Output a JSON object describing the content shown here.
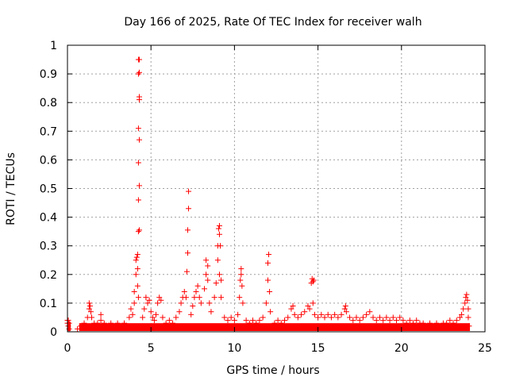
{
  "chart_data": {
    "type": "scatter",
    "title": "Day 166 of 2025, Rate Of TEC Index for receiver walh",
    "xlabel": "GPS time / hours",
    "ylabel": "ROTI / TECUs",
    "xlim": [
      0,
      25
    ],
    "ylim": [
      0,
      1
    ],
    "xticks": [
      0,
      5,
      10,
      15,
      20,
      25
    ],
    "yticks": [
      0,
      0.1,
      0.2,
      0.3,
      0.4,
      0.5,
      0.6,
      0.7,
      0.8,
      0.9,
      1
    ],
    "xtick_labels": [
      "0",
      "5",
      "10",
      "15",
      "20",
      "25"
    ],
    "ytick_labels": [
      "0",
      "0.1",
      "0.2",
      "0.3",
      "0.4",
      "0.5",
      "0.6",
      "0.7",
      "0.8",
      "0.9",
      "1"
    ],
    "grid": true,
    "marker": "+",
    "color": "#ff0000",
    "series": [
      {
        "points": [
          [
            0.0,
            0.04
          ],
          [
            0.0,
            0.03
          ],
          [
            0.05,
            0.02
          ],
          [
            0.1,
            0.01
          ],
          [
            0.1,
            0.03
          ],
          [
            0.05,
            0.04
          ],
          [
            0.6,
            0.01
          ],
          [
            0.8,
            0.02
          ],
          [
            1.0,
            0.03
          ],
          [
            1.2,
            0.05
          ],
          [
            1.3,
            0.08
          ],
          [
            1.3,
            0.1
          ],
          [
            1.35,
            0.09
          ],
          [
            1.4,
            0.07
          ],
          [
            1.45,
            0.05
          ],
          [
            1.6,
            0.03
          ],
          [
            1.8,
            0.03
          ],
          [
            2.0,
            0.04
          ],
          [
            2.0,
            0.06
          ],
          [
            2.2,
            0.03
          ],
          [
            2.4,
            0.02
          ],
          [
            2.6,
            0.03
          ],
          [
            2.8,
            0.02
          ],
          [
            3.0,
            0.03
          ],
          [
            3.2,
            0.02
          ],
          [
            3.4,
            0.03
          ],
          [
            3.6,
            0.02
          ],
          [
            3.7,
            0.05
          ],
          [
            3.8,
            0.08
          ],
          [
            3.9,
            0.06
          ],
          [
            4.0,
            0.1
          ],
          [
            4.0,
            0.14
          ],
          [
            4.1,
            0.25
          ],
          [
            4.1,
            0.2
          ],
          [
            4.15,
            0.26
          ],
          [
            4.2,
            0.27
          ],
          [
            4.2,
            0.22
          ],
          [
            4.2,
            0.16
          ],
          [
            4.25,
            0.12
          ],
          [
            4.25,
            0.46
          ],
          [
            4.3,
            0.51
          ],
          [
            4.25,
            0.59
          ],
          [
            4.3,
            0.67
          ],
          [
            4.25,
            0.71
          ],
          [
            4.3,
            0.81
          ],
          [
            4.3,
            0.82
          ],
          [
            4.25,
            0.9
          ],
          [
            4.3,
            0.905
          ],
          [
            4.25,
            0.95
          ],
          [
            4.3,
            0.95
          ],
          [
            4.25,
            0.35
          ],
          [
            4.3,
            0.355
          ],
          [
            4.5,
            0.05
          ],
          [
            4.6,
            0.08
          ],
          [
            4.7,
            0.12
          ],
          [
            4.8,
            0.1
          ],
          [
            4.9,
            0.11
          ],
          [
            5.0,
            0.07
          ],
          [
            5.1,
            0.05
          ],
          [
            5.2,
            0.04
          ],
          [
            5.3,
            0.06
          ],
          [
            5.4,
            0.1
          ],
          [
            5.5,
            0.12
          ],
          [
            5.6,
            0.11
          ],
          [
            5.7,
            0.05
          ],
          [
            5.9,
            0.03
          ],
          [
            6.1,
            0.04
          ],
          [
            6.3,
            0.03
          ],
          [
            6.5,
            0.05
          ],
          [
            6.7,
            0.07
          ],
          [
            6.8,
            0.1
          ],
          [
            6.9,
            0.12
          ],
          [
            7.0,
            0.14
          ],
          [
            7.1,
            0.12
          ],
          [
            7.15,
            0.21
          ],
          [
            7.2,
            0.275
          ],
          [
            7.2,
            0.355
          ],
          [
            7.25,
            0.43
          ],
          [
            7.25,
            0.49
          ],
          [
            7.4,
            0.06
          ],
          [
            7.5,
            0.09
          ],
          [
            7.6,
            0.12
          ],
          [
            7.7,
            0.14
          ],
          [
            7.8,
            0.16
          ],
          [
            7.9,
            0.12
          ],
          [
            8.0,
            0.1
          ],
          [
            8.2,
            0.15
          ],
          [
            8.3,
            0.2
          ],
          [
            8.3,
            0.25
          ],
          [
            8.4,
            0.23
          ],
          [
            8.4,
            0.18
          ],
          [
            8.5,
            0.1
          ],
          [
            8.6,
            0.07
          ],
          [
            8.8,
            0.12
          ],
          [
            8.9,
            0.17
          ],
          [
            9.0,
            0.25
          ],
          [
            9.0,
            0.3
          ],
          [
            9.1,
            0.34
          ],
          [
            9.1,
            0.37
          ],
          [
            9.05,
            0.36
          ],
          [
            9.15,
            0.3
          ],
          [
            9.1,
            0.2
          ],
          [
            9.2,
            0.18
          ],
          [
            9.2,
            0.12
          ],
          [
            9.4,
            0.05
          ],
          [
            9.6,
            0.04
          ],
          [
            9.8,
            0.05
          ],
          [
            10.0,
            0.04
          ],
          [
            10.2,
            0.06
          ],
          [
            10.3,
            0.12
          ],
          [
            10.35,
            0.18
          ],
          [
            10.4,
            0.22
          ],
          [
            10.4,
            0.2
          ],
          [
            10.45,
            0.16
          ],
          [
            10.5,
            0.1
          ],
          [
            10.7,
            0.04
          ],
          [
            10.9,
            0.03
          ],
          [
            11.1,
            0.04
          ],
          [
            11.3,
            0.03
          ],
          [
            11.5,
            0.04
          ],
          [
            11.7,
            0.05
          ],
          [
            11.9,
            0.1
          ],
          [
            12.0,
            0.18
          ],
          [
            12.0,
            0.24
          ],
          [
            12.05,
            0.27
          ],
          [
            12.1,
            0.14
          ],
          [
            12.15,
            0.07
          ],
          [
            12.4,
            0.03
          ],
          [
            12.6,
            0.04
          ],
          [
            12.8,
            0.03
          ],
          [
            13.0,
            0.04
          ],
          [
            13.2,
            0.05
          ],
          [
            13.4,
            0.08
          ],
          [
            13.5,
            0.09
          ],
          [
            13.6,
            0.06
          ],
          [
            13.8,
            0.05
          ],
          [
            14.0,
            0.06
          ],
          [
            14.2,
            0.07
          ],
          [
            14.4,
            0.09
          ],
          [
            14.5,
            0.08
          ],
          [
            14.6,
            0.17
          ],
          [
            14.65,
            0.185
          ],
          [
            14.7,
            0.175
          ],
          [
            14.75,
            0.18
          ],
          [
            14.7,
            0.1
          ],
          [
            14.8,
            0.06
          ],
          [
            15.0,
            0.05
          ],
          [
            15.2,
            0.06
          ],
          [
            15.4,
            0.05
          ],
          [
            15.6,
            0.06
          ],
          [
            15.8,
            0.05
          ],
          [
            16.0,
            0.06
          ],
          [
            16.2,
            0.05
          ],
          [
            16.4,
            0.06
          ],
          [
            16.6,
            0.08
          ],
          [
            16.65,
            0.09
          ],
          [
            16.7,
            0.07
          ],
          [
            16.9,
            0.05
          ],
          [
            17.1,
            0.04
          ],
          [
            17.3,
            0.05
          ],
          [
            17.5,
            0.04
          ],
          [
            17.7,
            0.05
          ],
          [
            17.9,
            0.06
          ],
          [
            18.1,
            0.07
          ],
          [
            18.3,
            0.05
          ],
          [
            18.5,
            0.04
          ],
          [
            18.7,
            0.05
          ],
          [
            18.9,
            0.04
          ],
          [
            19.1,
            0.05
          ],
          [
            19.3,
            0.04
          ],
          [
            19.5,
            0.05
          ],
          [
            19.7,
            0.04
          ],
          [
            19.9,
            0.05
          ],
          [
            20.1,
            0.04
          ],
          [
            20.3,
            0.03
          ],
          [
            20.5,
            0.04
          ],
          [
            20.7,
            0.03
          ],
          [
            20.9,
            0.04
          ],
          [
            21.1,
            0.03
          ],
          [
            21.3,
            0.03
          ],
          [
            21.5,
            0.02
          ],
          [
            21.7,
            0.03
          ],
          [
            21.9,
            0.02
          ],
          [
            22.1,
            0.03
          ],
          [
            22.3,
            0.02
          ],
          [
            22.5,
            0.03
          ],
          [
            22.7,
            0.03
          ],
          [
            22.9,
            0.04
          ],
          [
            23.1,
            0.03
          ],
          [
            23.3,
            0.04
          ],
          [
            23.5,
            0.05
          ],
          [
            23.6,
            0.06
          ],
          [
            23.7,
            0.08
          ],
          [
            23.8,
            0.1
          ],
          [
            23.85,
            0.12
          ],
          [
            23.9,
            0.13
          ],
          [
            23.95,
            0.11
          ],
          [
            24.0,
            0.08
          ],
          [
            24.0,
            0.05
          ],
          [
            24.05,
            0.02
          ]
        ]
      }
    ]
  }
}
